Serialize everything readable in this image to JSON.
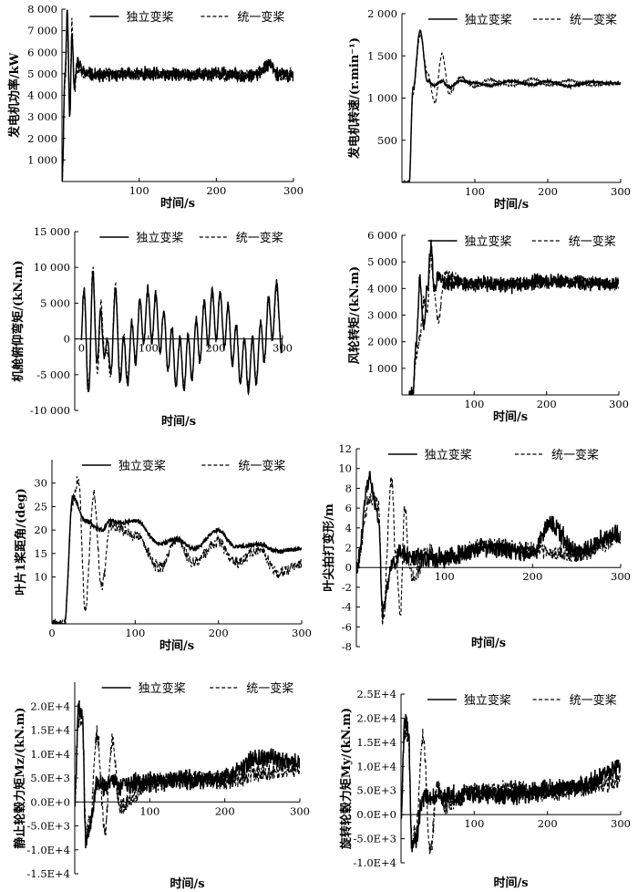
{
  "legend": {
    "independent": "独立变桨",
    "unified": "统一变桨"
  },
  "chart_data": [
    {
      "type": "line",
      "xlabel": "时间/s",
      "ylabel": "发电机功率/kW",
      "xlim": [
        0,
        300
      ],
      "ylim": [
        0,
        8000
      ],
      "xticks": [
        100,
        200,
        300
      ],
      "xtick_labels": [
        "100",
        "200",
        "300"
      ],
      "yticks": [
        1000,
        2000,
        3000,
        4000,
        5000,
        6000,
        7000,
        8000
      ],
      "ytick_labels": [
        "1 000",
        "2 000",
        "3 000",
        "4 000",
        "5 000",
        "6 000",
        "7 000",
        "8 000"
      ],
      "legend_position": "top",
      "series": [
        {
          "name": "独立变桨",
          "style": "solid",
          "x": [
            0,
            4,
            7,
            10,
            13,
            16,
            20,
            30,
            50,
            100,
            150,
            200,
            250,
            270,
            280,
            300
          ],
          "y": [
            0,
            5000,
            7800,
            3000,
            7000,
            4500,
            5500,
            5000,
            4900,
            5000,
            4950,
            5000,
            4900,
            5500,
            5000,
            4900
          ]
        },
        {
          "name": "统一变桨",
          "style": "dashed",
          "x": [
            0,
            4,
            7,
            10,
            13,
            16,
            20,
            30,
            50,
            100,
            150,
            200,
            250,
            270,
            280,
            300
          ],
          "y": [
            0,
            4500,
            7500,
            3500,
            7400,
            4200,
            5200,
            5000,
            5000,
            4950,
            5000,
            4900,
            5000,
            5400,
            4900,
            5000
          ]
        }
      ]
    },
    {
      "type": "line",
      "xlabel": "时间/s",
      "ylabel": "发电机转速/(r.min⁻¹)",
      "xlim": [
        0,
        300
      ],
      "ylim": [
        0,
        2000
      ],
      "xticks": [
        100,
        200,
        300
      ],
      "xtick_labels": [
        "100",
        "200",
        "300"
      ],
      "yticks": [
        500,
        1000,
        1500,
        2000
      ],
      "ytick_labels": [
        "500",
        "1 000",
        "1 500",
        "2 000"
      ],
      "legend_position": "top",
      "series": [
        {
          "name": "独立变桨",
          "style": "solid",
          "x": [
            0,
            5,
            10,
            15,
            25,
            35,
            45,
            55,
            65,
            80,
            100,
            120,
            150,
            180,
            200,
            230,
            260,
            300
          ],
          "y": [
            0,
            0,
            0,
            1100,
            1800,
            1200,
            1150,
            1200,
            1130,
            1200,
            1180,
            1150,
            1200,
            1160,
            1200,
            1140,
            1190,
            1170
          ]
        },
        {
          "name": "统一变桨",
          "style": "dashed",
          "x": [
            0,
            5,
            10,
            15,
            25,
            35,
            45,
            55,
            65,
            80,
            100,
            120,
            150,
            180,
            200,
            230,
            260,
            300
          ],
          "y": [
            0,
            0,
            0,
            1050,
            1750,
            1300,
            950,
            1520,
            1050,
            1250,
            1130,
            1220,
            1150,
            1230,
            1150,
            1210,
            1150,
            1180
          ]
        }
      ]
    },
    {
      "type": "line",
      "xlabel": "时间/s",
      "ylabel": "机舱俯仰弯矩/(kN.m)",
      "xlim": [
        -10,
        300
      ],
      "ylim": [
        -10000,
        15000
      ],
      "xticks": [
        0,
        100,
        200,
        300
      ],
      "xtick_labels": [
        "0",
        "100",
        "200",
        "300"
      ],
      "yticks": [
        -10000,
        -5000,
        0,
        5000,
        10000,
        15000
      ],
      "ytick_labels": [
        "-10 000",
        "-5 000",
        "0",
        "5 000",
        "10 000",
        "15 000"
      ],
      "legend_position": "top",
      "series": [
        {
          "name": "独立变桨",
          "style": "solid",
          "x": [
            0,
            5,
            12,
            18,
            25,
            30,
            40,
            50,
            60,
            100,
            150,
            200,
            250,
            295,
            300
          ],
          "y": [
            0,
            4000,
            -6000,
            8500,
            -3500,
            3000,
            -4000,
            3500,
            -3500,
            3500,
            -3500,
            3500,
            -3800,
            4500,
            0
          ]
        },
        {
          "name": "统一变桨",
          "style": "dashed",
          "x": [
            0,
            5,
            12,
            18,
            25,
            30,
            40,
            50,
            60,
            100,
            150,
            200,
            250,
            295,
            300
          ],
          "y": [
            0,
            3500,
            -5000,
            9500,
            -5500,
            4800,
            -5500,
            4500,
            -3000,
            3200,
            -3300,
            3300,
            -3500,
            4000,
            0
          ]
        }
      ]
    },
    {
      "type": "line",
      "xlabel": "时间/s",
      "ylabel": "风轮转矩/(kN.m)",
      "xlim": [
        0,
        300
      ],
      "ylim": [
        0,
        6000
      ],
      "xticks": [
        100,
        200,
        300
      ],
      "xtick_labels": [
        "100",
        "200",
        "300"
      ],
      "yticks": [
        1000,
        2000,
        3000,
        4000,
        5000,
        6000
      ],
      "ytick_labels": [
        "1 000",
        "2 000",
        "3 000",
        "4 000",
        "5 000",
        "6 000"
      ],
      "legend_position": "top",
      "series": [
        {
          "name": "独立变桨",
          "style": "solid",
          "x": [
            10,
            15,
            20,
            25,
            30,
            35,
            40,
            45,
            50,
            60,
            100,
            150,
            200,
            250,
            300
          ],
          "y": [
            0,
            0,
            2000,
            4400,
            2500,
            4000,
            5600,
            4000,
            4500,
            4200,
            4200,
            4100,
            4300,
            4200,
            4200
          ]
        },
        {
          "name": "统一变桨",
          "style": "dashed",
          "x": [
            10,
            15,
            20,
            25,
            30,
            35,
            40,
            45,
            50,
            60,
            100,
            150,
            200,
            250,
            300
          ],
          "y": [
            0,
            0,
            1500,
            2200,
            3500,
            3200,
            5200,
            3800,
            2800,
            4500,
            4100,
            4200,
            4200,
            4300,
            4100
          ]
        }
      ]
    },
    {
      "type": "line",
      "xlabel": "时间/s",
      "ylabel": "叶片1桨距角/(deg)",
      "xlim": [
        0,
        300
      ],
      "ylim": [
        0,
        35
      ],
      "xticks": [
        0,
        100,
        200,
        300
      ],
      "xtick_labels": [
        "0",
        "100",
        "200",
        "300"
      ],
      "yticks": [
        10,
        15,
        20,
        25,
        30
      ],
      "ytick_labels": [
        "10",
        "15",
        "20",
        "25",
        "30"
      ],
      "legend_position": "top",
      "series": [
        {
          "name": "独立变桨",
          "style": "solid",
          "x": [
            0,
            15,
            25,
            40,
            60,
            70,
            80,
            100,
            130,
            150,
            170,
            200,
            220,
            250,
            270,
            300
          ],
          "y": [
            0,
            0,
            27,
            22,
            20,
            22,
            21.5,
            22,
            17,
            18,
            16,
            20,
            16.5,
            17,
            15.5,
            16
          ]
        },
        {
          "name": "统一变桨",
          "style": "dashed",
          "x": [
            0,
            15,
            25,
            32,
            40,
            50,
            60,
            70,
            100,
            130,
            150,
            170,
            200,
            220,
            250,
            270,
            300
          ],
          "y": [
            0,
            0,
            26,
            31,
            3,
            27.5,
            8,
            21,
            19,
            12,
            18,
            13,
            17.5,
            13,
            16,
            11,
            12.5
          ]
        }
      ]
    },
    {
      "type": "line",
      "xlabel": "时间/s",
      "ylabel": "叶尖拍打变形/m",
      "xlim": [
        0,
        300
      ],
      "ylim": [
        -8,
        12
      ],
      "xticks": [
        100,
        200,
        300
      ],
      "xtick_labels": [
        "100",
        "200",
        "300"
      ],
      "yticks": [
        -8,
        -6,
        -4,
        -2,
        0,
        2,
        4,
        6,
        8,
        10,
        12
      ],
      "ytick_labels": [
        "-8",
        "-6",
        "-4",
        "-2",
        "0",
        "2",
        "4",
        "6",
        "8",
        "10",
        "12"
      ],
      "legend_position": "top",
      "series": [
        {
          "name": "独立变桨",
          "style": "solid",
          "x": [
            0,
            15,
            25,
            30,
            40,
            50,
            60,
            80,
            100,
            150,
            200,
            220,
            250,
            300
          ],
          "y": [
            0,
            9,
            5,
            -4.5,
            0,
            1.5,
            1,
            0.8,
            1,
            2,
            1.5,
            4.5,
            1.5,
            3.5
          ]
        },
        {
          "name": "统一变桨",
          "style": "dashed",
          "x": [
            0,
            15,
            25,
            30,
            40,
            45,
            50,
            55,
            60,
            65,
            80,
            100,
            150,
            200,
            250,
            300
          ],
          "y": [
            0,
            7,
            6.5,
            -5.5,
            9,
            1,
            -4.5,
            6.5,
            0,
            -1,
            1.5,
            1,
            2.2,
            1.8,
            1.2,
            3
          ]
        }
      ]
    },
    {
      "type": "line",
      "xlabel": "时间/s",
      "ylabel": "静止轮毂力矩Mz/(kN.m)",
      "xlim": [
        0,
        300
      ],
      "ylim": [
        -15000,
        25000
      ],
      "xticks": [
        100,
        200,
        300
      ],
      "xtick_labels": [
        "100",
        "200",
        "300"
      ],
      "yticks": [
        -15000,
        -10000,
        -5000,
        0,
        5000,
        10000,
        15000,
        20000
      ],
      "ytick_labels": [
        "-1.5E+4",
        "-1.0E+4",
        "-5.0E+3",
        "0.0E+0",
        "5.0E+3",
        "1.0E+4",
        "1.5E+4",
        "2.0E+4"
      ],
      "legend_position": "top",
      "series": [
        {
          "name": "独立变桨",
          "style": "solid",
          "x": [
            0,
            5,
            10,
            15,
            20,
            30,
            40,
            50,
            60,
            100,
            150,
            200,
            250,
            300
          ],
          "y": [
            0,
            19000,
            18000,
            -8500,
            -5000,
            4000,
            3000,
            4500,
            3500,
            4000,
            4500,
            5000,
            9500,
            8000
          ]
        },
        {
          "name": "统一变桨",
          "style": "dashed",
          "x": [
            0,
            5,
            10,
            15,
            20,
            30,
            40,
            50,
            60,
            100,
            150,
            200,
            250,
            300
          ],
          "y": [
            0,
            17000,
            16000,
            -6000,
            -4000,
            14000,
            -6000,
            12500,
            -1000,
            4000,
            5000,
            4500,
            6000,
            7000
          ]
        }
      ]
    },
    {
      "type": "line",
      "xlabel": "时间/s",
      "ylabel": "旋转轮毂力矩My/(kN.m)",
      "xlim": [
        0,
        300
      ],
      "ylim": [
        -10000,
        25000
      ],
      "xticks": [
        100,
        200,
        300
      ],
      "xtick_labels": [
        "100",
        "200",
        "300"
      ],
      "yticks": [
        -10000,
        -5000,
        0,
        5000,
        10000,
        15000,
        20000,
        25000
      ],
      "ytick_labels": [
        "-1.0E+4",
        "-5.0E+3",
        "0.0E+0",
        "5.0E+3",
        "1.0E+4",
        "1.5E+4",
        "2.0E+4",
        "2.5E+4"
      ],
      "legend_position": "top",
      "series": [
        {
          "name": "独立变桨",
          "style": "solid",
          "x": [
            0,
            5,
            10,
            15,
            20,
            30,
            40,
            50,
            60,
            100,
            150,
            200,
            250,
            300
          ],
          "y": [
            0,
            19500,
            17000,
            -7500,
            -5000,
            4000,
            3000,
            4000,
            3500,
            4500,
            4000,
            5000,
            6000,
            10000
          ]
        },
        {
          "name": "统一变桨",
          "style": "dashed",
          "x": [
            0,
            5,
            10,
            15,
            20,
            30,
            40,
            50,
            60,
            100,
            150,
            200,
            250,
            300
          ],
          "y": [
            0,
            17000,
            15000,
            -5500,
            -3500,
            16000,
            -7500,
            6000,
            2000,
            4500,
            5500,
            4500,
            5500,
            7000
          ]
        }
      ]
    }
  ]
}
